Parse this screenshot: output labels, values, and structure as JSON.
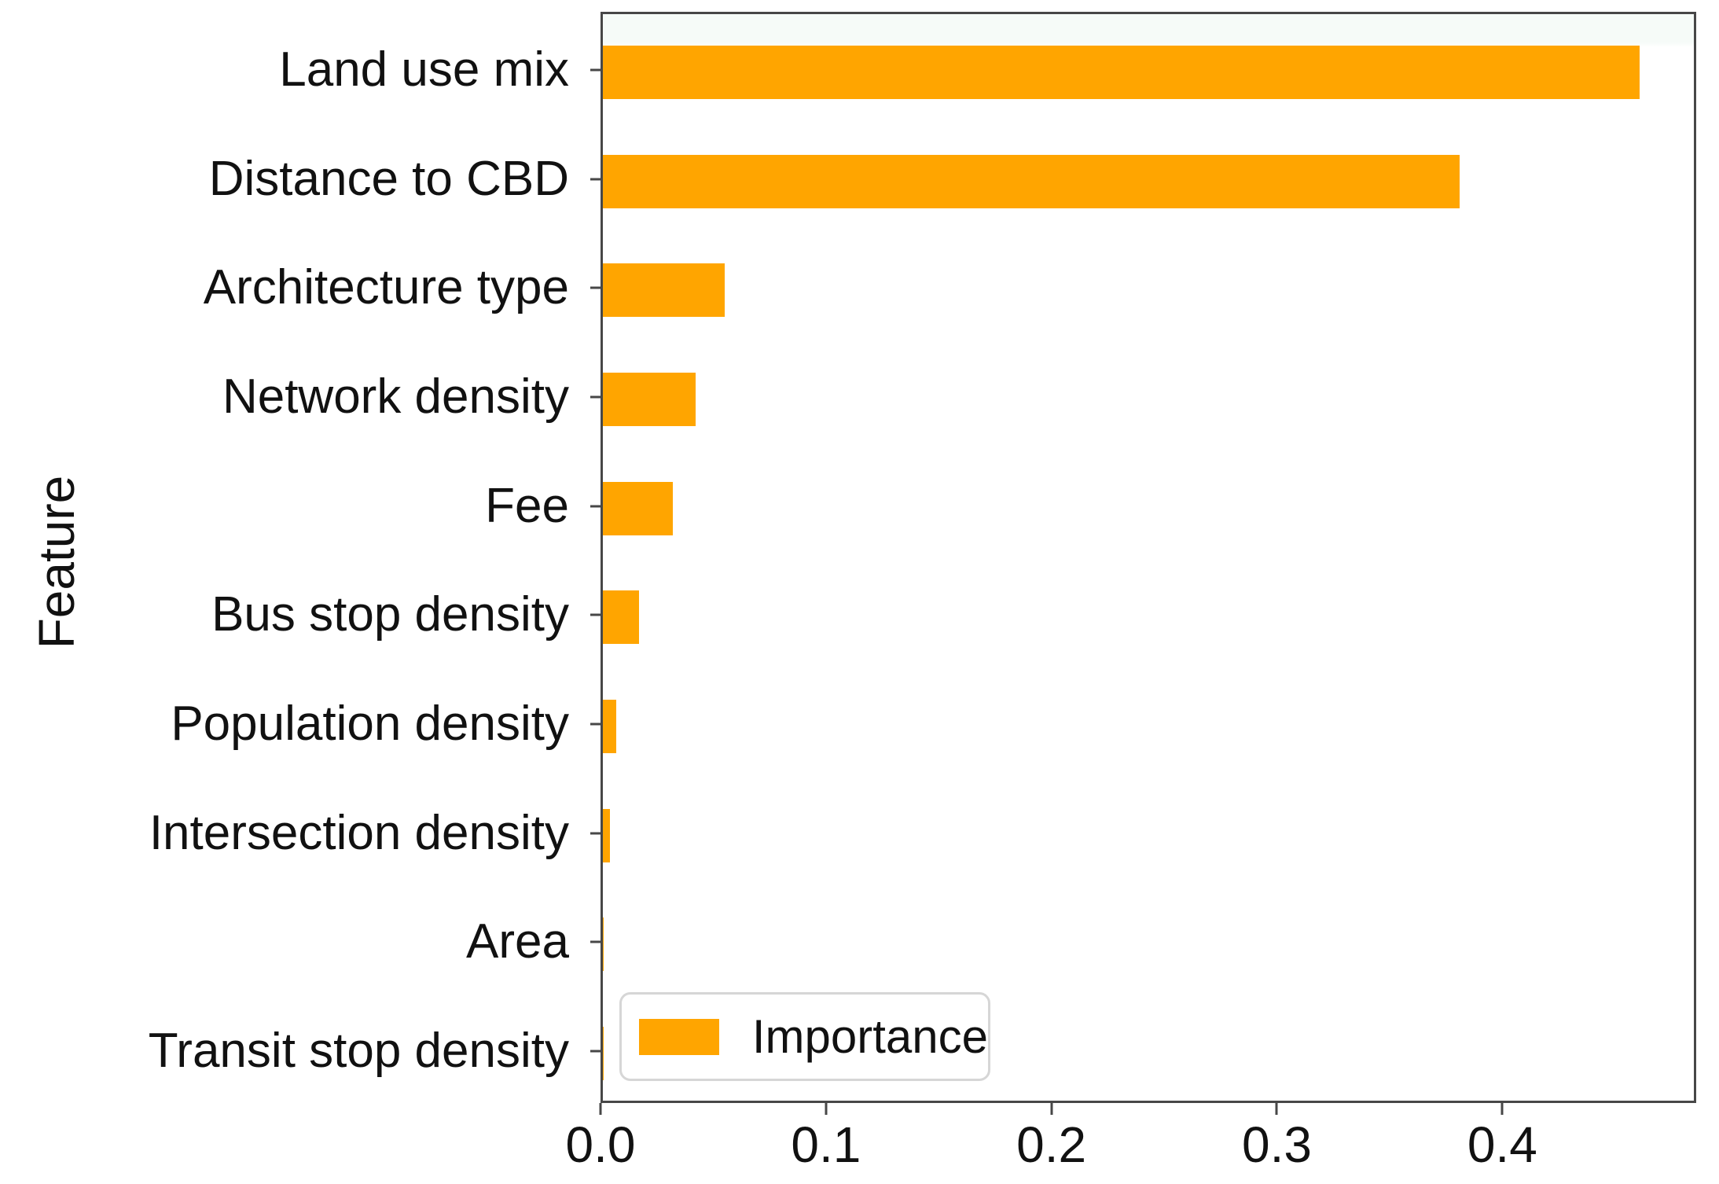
{
  "chart_data": {
    "type": "bar",
    "orientation": "horizontal",
    "title": "",
    "xlabel": "",
    "ylabel": "Feature",
    "categories": [
      "Land use mix",
      "Distance to CBD",
      "Architecture type",
      "Network density",
      "Fee",
      "Bus stop density",
      "Population density",
      "Intersection density",
      "Area",
      "Transit stop density"
    ],
    "values": [
      0.46,
      0.38,
      0.054,
      0.041,
      0.031,
      0.016,
      0.006,
      0.003,
      0.0005,
      0.0002
    ],
    "series_name": "Importance",
    "xticks": [
      0.0,
      0.1,
      0.2,
      0.3,
      0.4
    ],
    "xtick_labels": [
      "0.0",
      "0.1",
      "0.2",
      "0.3",
      "0.4"
    ],
    "xlim": [
      0,
      0.486
    ],
    "grid": false,
    "legend": {
      "entries": [
        "Importance"
      ],
      "position": "lower left"
    }
  },
  "colors": {
    "bar": "#FFA500",
    "spine": "#474747",
    "text": "#111111",
    "legend_border": "#d6d6d6",
    "plot_top_tint": "#f6fbf8"
  }
}
